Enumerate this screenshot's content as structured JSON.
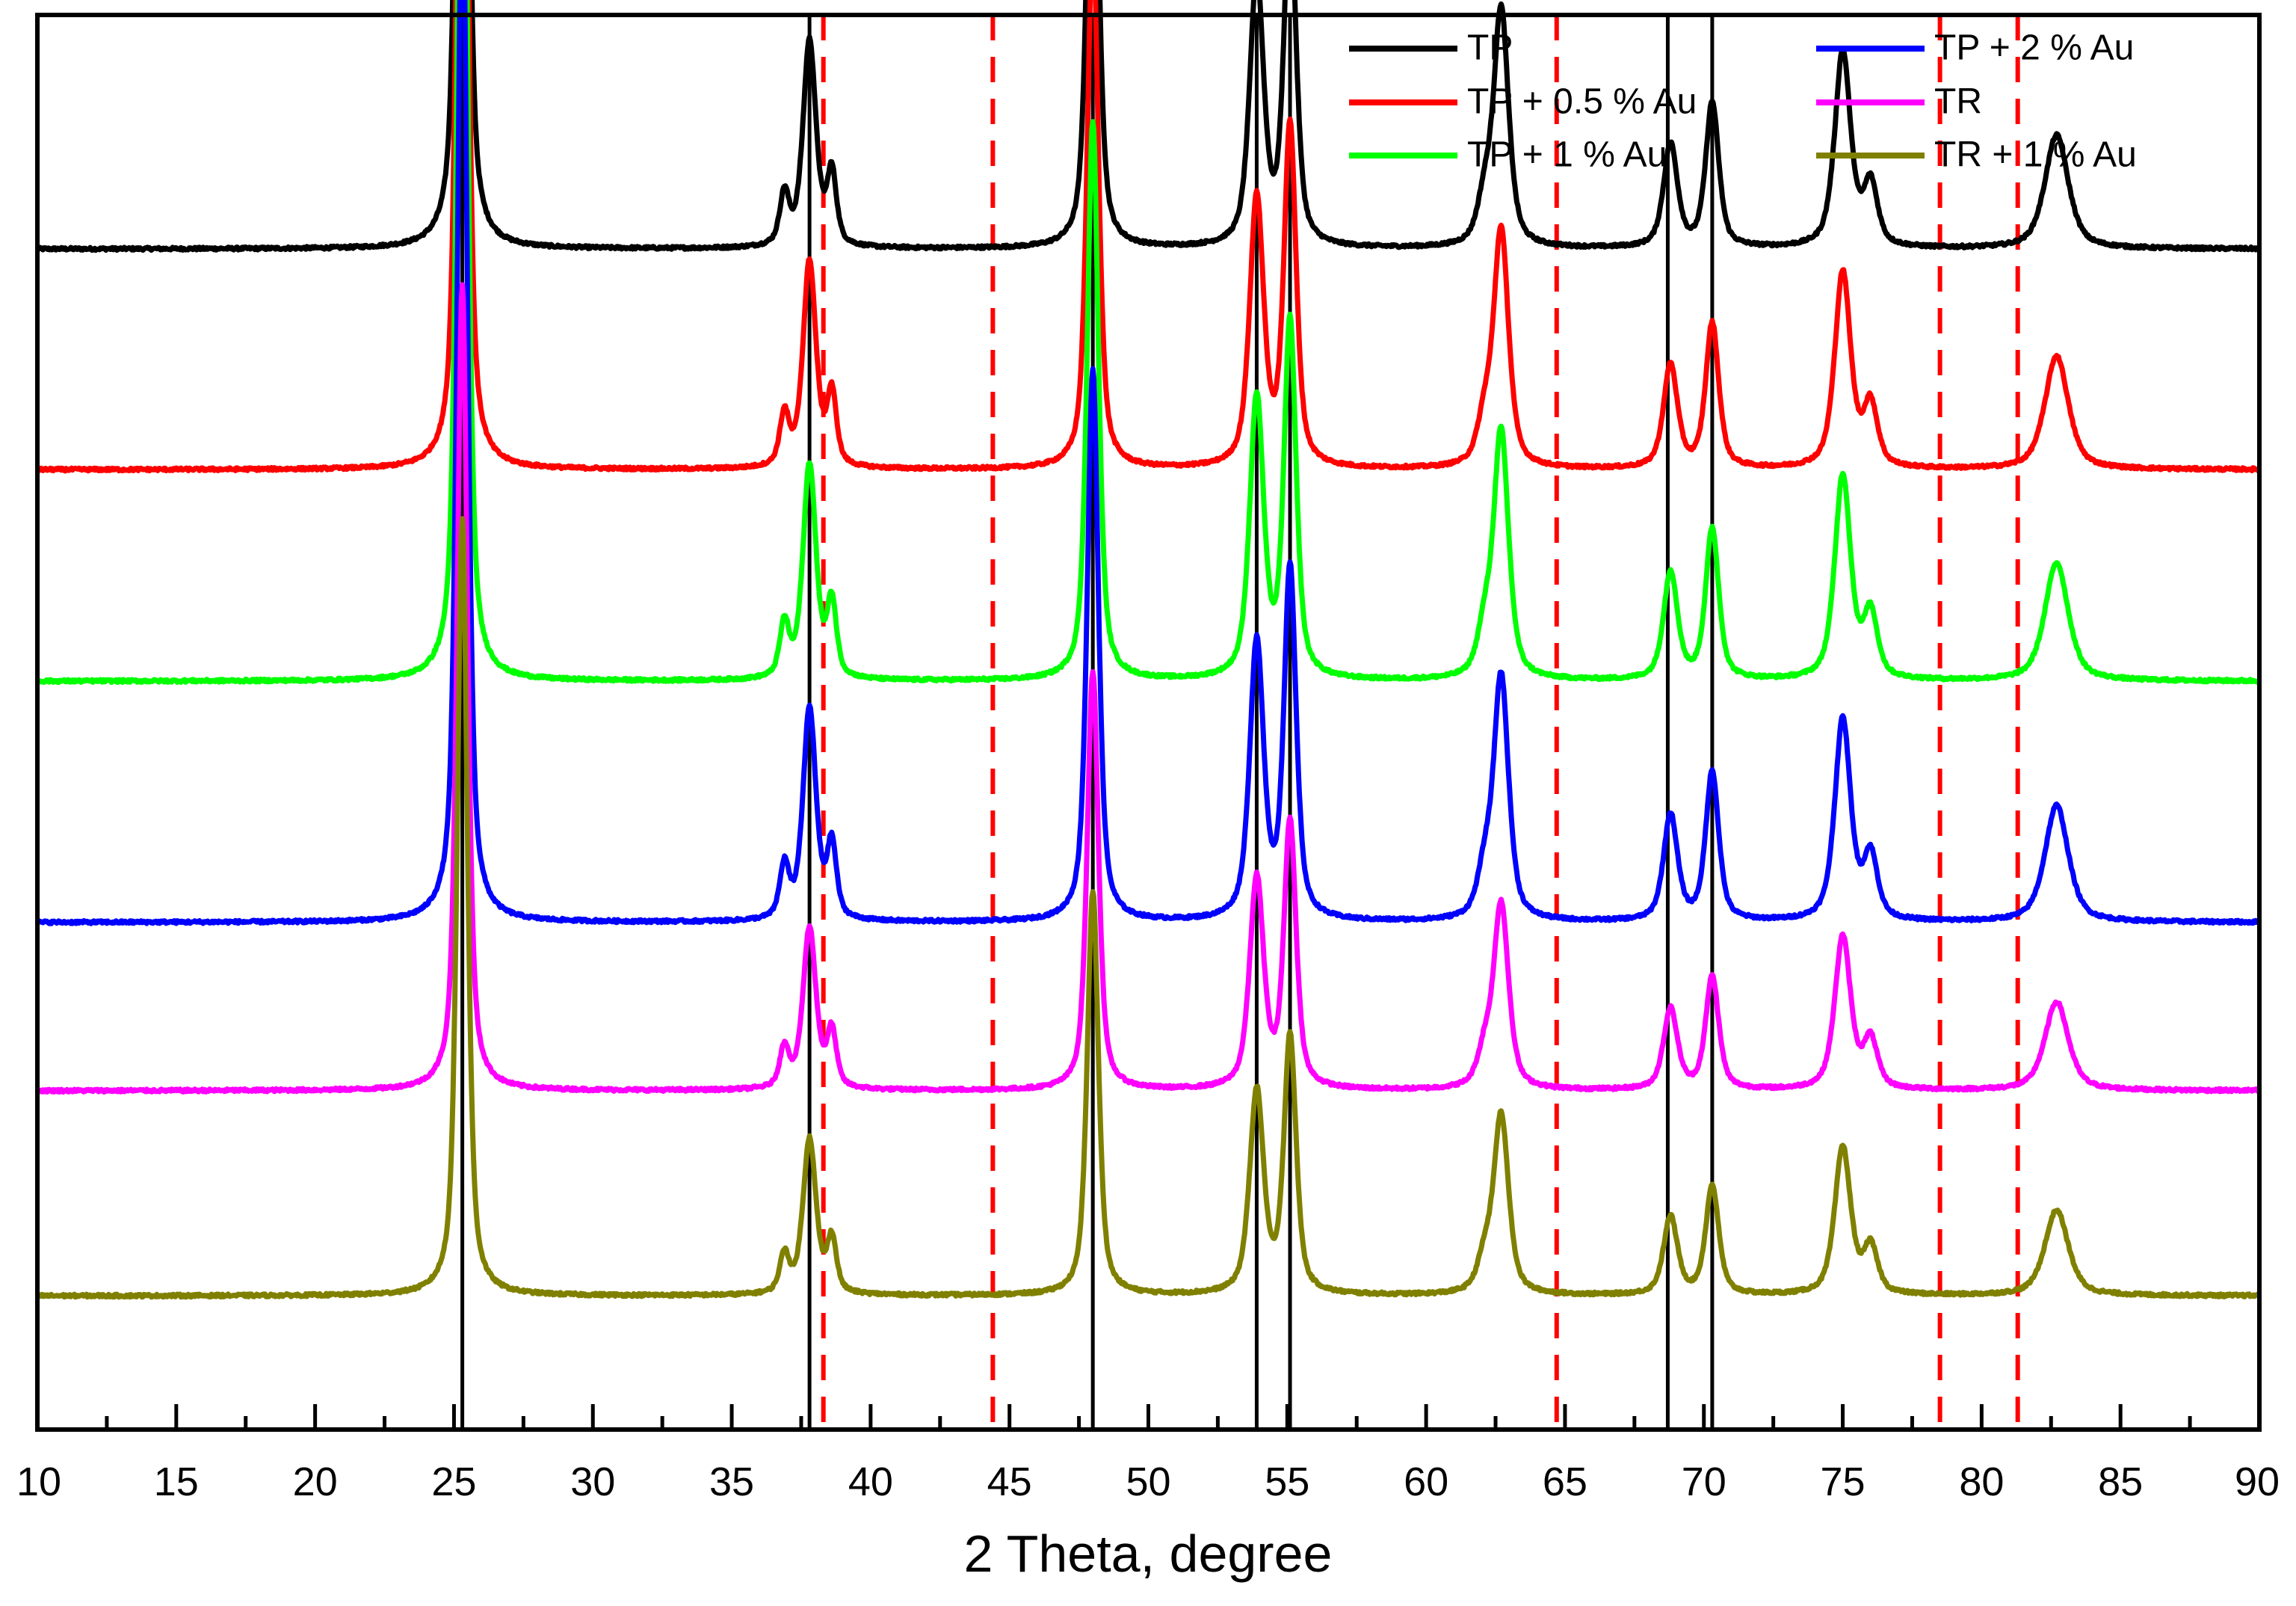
{
  "chart_data": {
    "type": "line",
    "title": "",
    "xlabel": "2 Theta, degree",
    "ylabel": "",
    "xlim": [
      10,
      90
    ],
    "major_ticks": [
      10,
      15,
      20,
      25,
      30,
      35,
      40,
      45,
      50,
      55,
      60,
      65,
      70,
      75,
      80,
      85,
      90
    ],
    "minor_tick_step": 2.5,
    "reference_lines_solid": [
      25.3,
      37.8,
      48.0,
      53.9,
      55.1,
      68.7,
      70.3
    ],
    "reference_lines_dashed": [
      38.3,
      44.4,
      64.7,
      78.5,
      81.3
    ],
    "reference_solid_color": "#000000",
    "reference_dashed_color": "#ff0000",
    "peaks": [
      {
        "x": 25.3,
        "h": 1.0,
        "w": 0.22
      },
      {
        "x": 36.9,
        "h": 0.05,
        "w": 0.2
      },
      {
        "x": 37.8,
        "h": 0.2,
        "w": 0.28
      },
      {
        "x": 38.6,
        "h": 0.07,
        "w": 0.2
      },
      {
        "x": 48.0,
        "h": 0.52,
        "w": 0.24
      },
      {
        "x": 53.9,
        "h": 0.26,
        "w": 0.3
      },
      {
        "x": 55.1,
        "h": 0.33,
        "w": 0.26
      },
      {
        "x": 62.1,
        "h": 0.04,
        "w": 0.3
      },
      {
        "x": 62.7,
        "h": 0.23,
        "w": 0.32
      },
      {
        "x": 68.8,
        "h": 0.1,
        "w": 0.3
      },
      {
        "x": 70.3,
        "h": 0.14,
        "w": 0.28
      },
      {
        "x": 75.0,
        "h": 0.19,
        "w": 0.34
      },
      {
        "x": 76.0,
        "h": 0.06,
        "w": 0.3
      },
      {
        "x": 82.7,
        "h": 0.11,
        "w": 0.5
      }
    ],
    "series": [
      {
        "name": "TP",
        "color": "#000000",
        "baseline": 0.8345,
        "scale": 0.73
      },
      {
        "name": "TP + 0.5 % Au",
        "color": "#ff0000",
        "baseline": 0.6785,
        "scale": 0.73
      },
      {
        "name": "TP + 1 % Au",
        "color": "#00ff00",
        "baseline": 0.529,
        "scale": 0.76
      },
      {
        "name": "TP + 2 % Au",
        "color": "#0000ff",
        "baseline": 0.3585,
        "scale": 0.75
      },
      {
        "name": "TR",
        "color": "#ff00ff",
        "baseline": 0.2395,
        "scale": 0.57
      },
      {
        "name": "TR + 1 % Au",
        "color": "#808000",
        "baseline": 0.0945,
        "scale": 0.55
      }
    ],
    "legend": {
      "position": "top-right",
      "columns": [
        [
          "TP",
          "TP + 0.5 % Au",
          "TP + 1 % Au"
        ],
        [
          "TP + 2 % Au",
          "TR",
          "TR + 1 % Au"
        ]
      ]
    }
  }
}
